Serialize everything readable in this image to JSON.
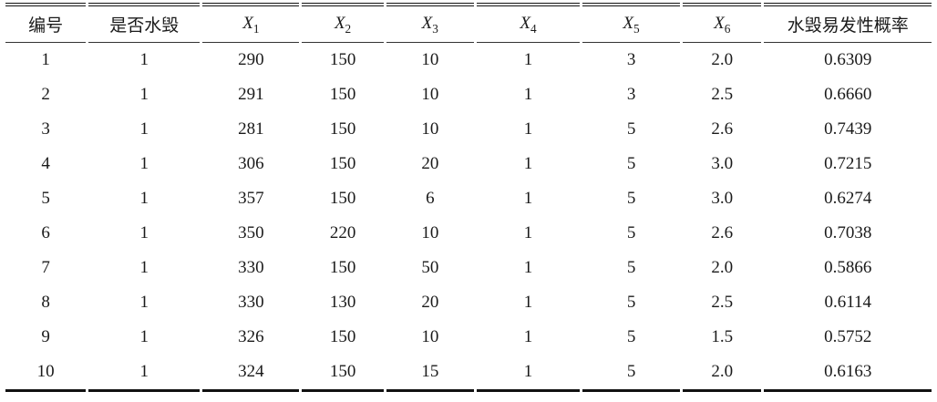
{
  "table": {
    "columns": [
      {
        "label": "编号"
      },
      {
        "label": "是否水毁"
      },
      {
        "base": "X",
        "sub": "1"
      },
      {
        "base": "X",
        "sub": "2"
      },
      {
        "base": "X",
        "sub": "3"
      },
      {
        "base": "X",
        "sub": "4"
      },
      {
        "base": "X",
        "sub": "5"
      },
      {
        "base": "X",
        "sub": "6"
      },
      {
        "label": "水毁易发性概率"
      }
    ],
    "rows": [
      [
        "1",
        "1",
        "290",
        "150",
        "10",
        "1",
        "3",
        "2.0",
        "0.6309"
      ],
      [
        "2",
        "1",
        "291",
        "150",
        "10",
        "1",
        "3",
        "2.5",
        "0.6660"
      ],
      [
        "3",
        "1",
        "281",
        "150",
        "10",
        "1",
        "5",
        "2.6",
        "0.7439"
      ],
      [
        "4",
        "1",
        "306",
        "150",
        "20",
        "1",
        "5",
        "3.0",
        "0.7215"
      ],
      [
        "5",
        "1",
        "357",
        "150",
        "6",
        "1",
        "5",
        "3.0",
        "0.6274"
      ],
      [
        "6",
        "1",
        "350",
        "220",
        "10",
        "1",
        "5",
        "2.6",
        "0.7038"
      ],
      [
        "7",
        "1",
        "330",
        "150",
        "50",
        "1",
        "5",
        "2.0",
        "0.5866"
      ],
      [
        "8",
        "1",
        "330",
        "130",
        "20",
        "1",
        "5",
        "2.5",
        "0.6114"
      ],
      [
        "9",
        "1",
        "326",
        "150",
        "10",
        "1",
        "5",
        "1.5",
        "0.5752"
      ],
      [
        "10",
        "1",
        "324",
        "150",
        "15",
        "1",
        "5",
        "2.0",
        "0.6163"
      ]
    ]
  },
  "colors": {
    "text": "#1a1a1a",
    "rule": "#111111",
    "background": "#ffffff"
  }
}
